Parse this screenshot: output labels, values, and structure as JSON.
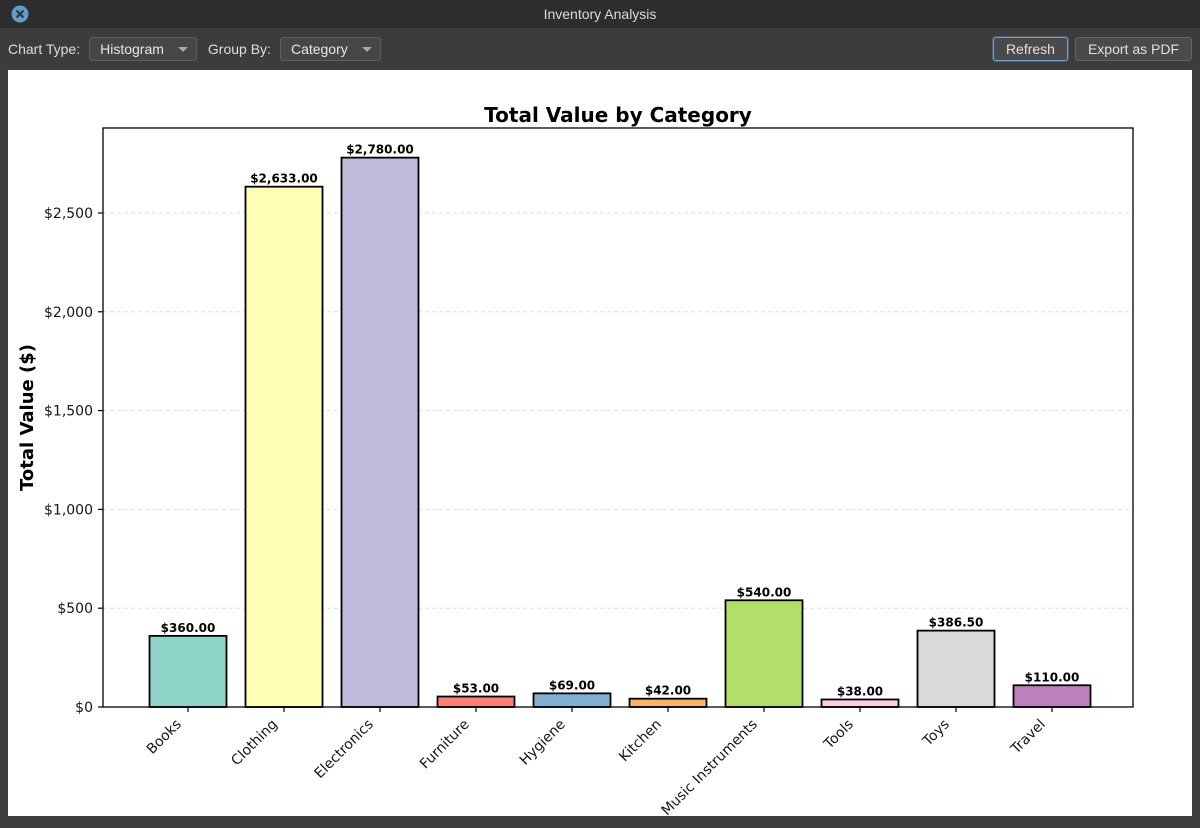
{
  "window": {
    "title": "Inventory Analysis"
  },
  "toolbar": {
    "chart_type_label": "Chart Type:",
    "chart_type_value": "Histogram",
    "group_by_label": "Group By:",
    "group_by_value": "Category",
    "refresh_label": "Refresh",
    "export_label": "Export as PDF"
  },
  "chart_data": {
    "type": "bar",
    "title": "Total Value by Category",
    "ylabel": "Total Value ($)",
    "xlabel": "",
    "categories": [
      "Books",
      "Clothing",
      "Electronics",
      "Furniture",
      "Hygiene",
      "Kitchen",
      "Music Instruments",
      "Tools",
      "Toys",
      "Travel"
    ],
    "values": [
      360,
      2633,
      2780,
      53,
      69,
      42,
      540,
      38,
      386.5,
      110
    ],
    "value_labels": [
      "$360.00",
      "$2,633.00",
      "$2,780.00",
      "$53.00",
      "$69.00",
      "$42.00",
      "$540.00",
      "$38.00",
      "$386.50",
      "$110.00"
    ],
    "bar_colors": [
      "#8dd3c7",
      "#ffffb3",
      "#bebada",
      "#fb8072",
      "#80b1d3",
      "#fdb462",
      "#b3de69",
      "#fccde5",
      "#d9d9d9",
      "#bc80bd"
    ],
    "ylim": [
      0,
      2930
    ],
    "yticks": [
      0,
      500,
      1000,
      1500,
      2000,
      2500
    ],
    "ytick_labels": [
      "$0",
      "$500",
      "$1,000",
      "$1,500",
      "$2,000",
      "$2,500"
    ],
    "legend": "none",
    "grid": "dashed-horizontal"
  },
  "colors": {
    "bar_edge": "#000000",
    "grid": "#dedede",
    "focus_border": "#70a0cc",
    "close_button": "#5f9ec9"
  }
}
